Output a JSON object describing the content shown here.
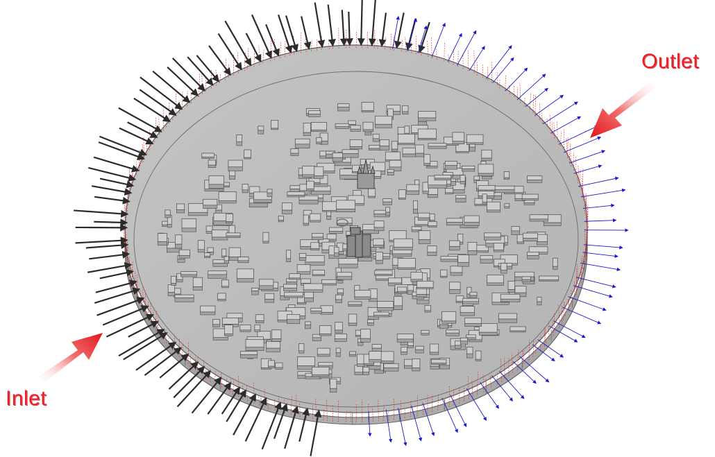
{
  "labels": {
    "inlet": "Inlet",
    "outlet": "Outlet"
  },
  "colors": {
    "background": "#ffffff",
    "disk_top": "#bdbdbd",
    "disk_side": "#a9a9a9",
    "building_fill": "#c8c8c8",
    "building_stroke": "#4a4a4a",
    "inflow_vector": "#2b2b2b",
    "outflow_vector": "#1a1acc",
    "boundary_vector": "#e02020",
    "flow_marker_arrow": "#e8171c"
  },
  "icons": {
    "inlet_marker": "red-flow-arrow-icon",
    "outlet_marker": "red-flow-arrow-icon"
  }
}
